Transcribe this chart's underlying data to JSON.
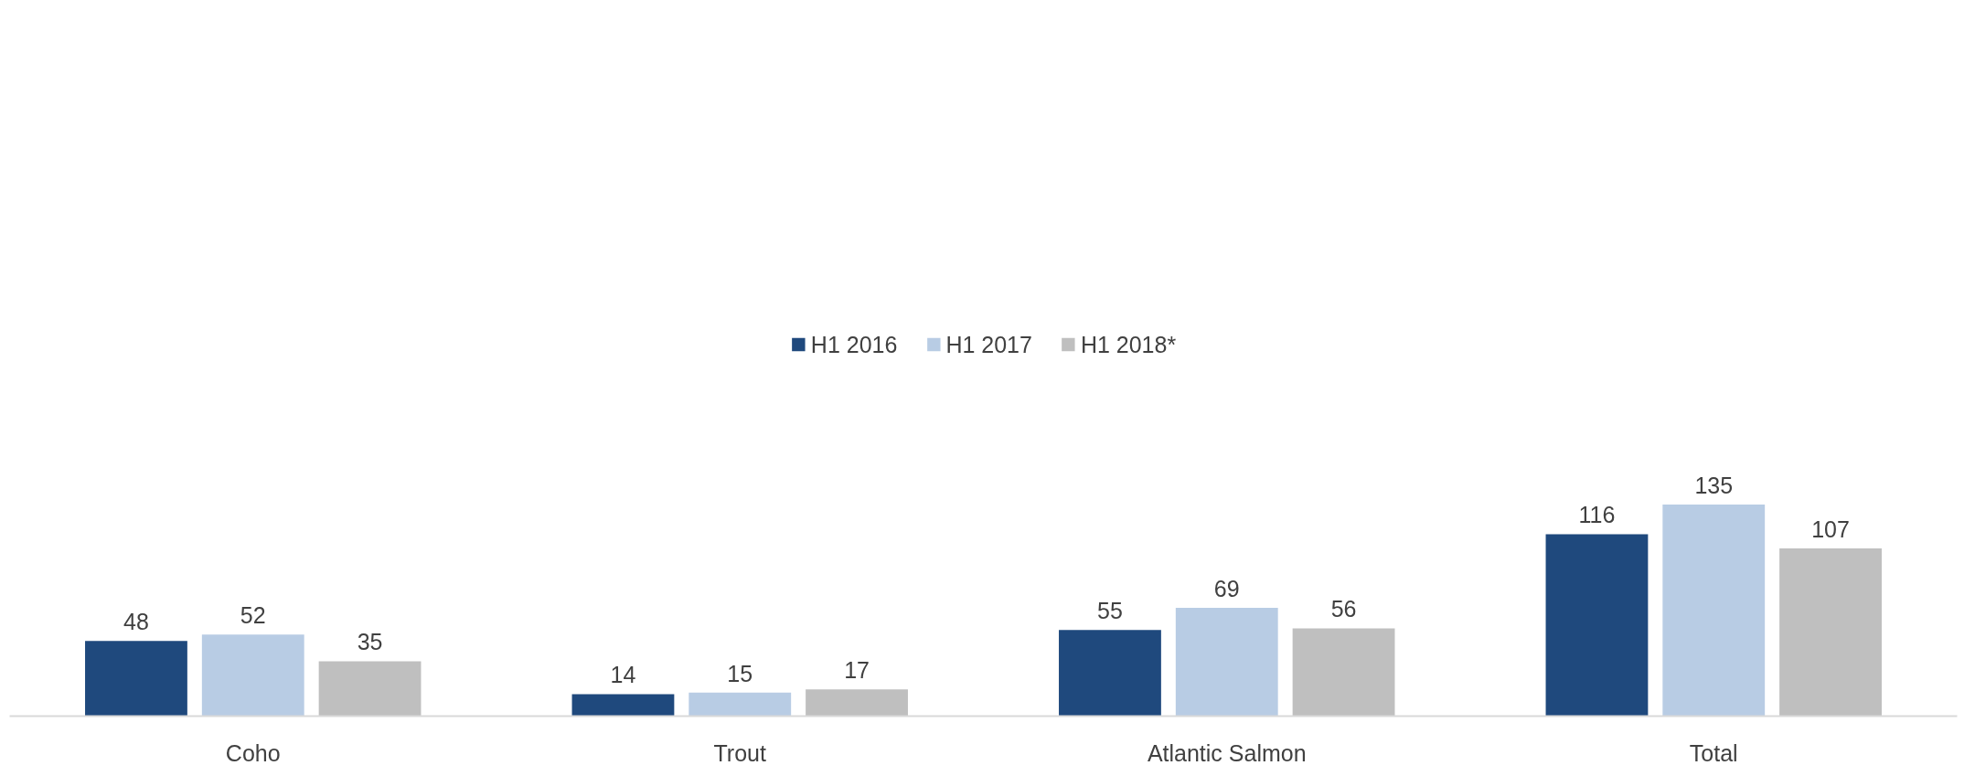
{
  "chart_data": {
    "type": "bar",
    "categories": [
      "Coho",
      "Trout",
      "Atlantic Salmon",
      "Total"
    ],
    "series": [
      {
        "name": "H1 2016",
        "color": "#1f497d",
        "values": [
          48,
          14,
          55,
          116
        ]
      },
      {
        "name": "H1 2017",
        "color": "#b8cce4",
        "values": [
          52,
          15,
          69,
          135
        ]
      },
      {
        "name": "H1 2018*",
        "color": "#bfbfbf",
        "values": [
          35,
          17,
          56,
          107
        ]
      }
    ],
    "data_labels": true,
    "legend": "top",
    "grid": false
  }
}
